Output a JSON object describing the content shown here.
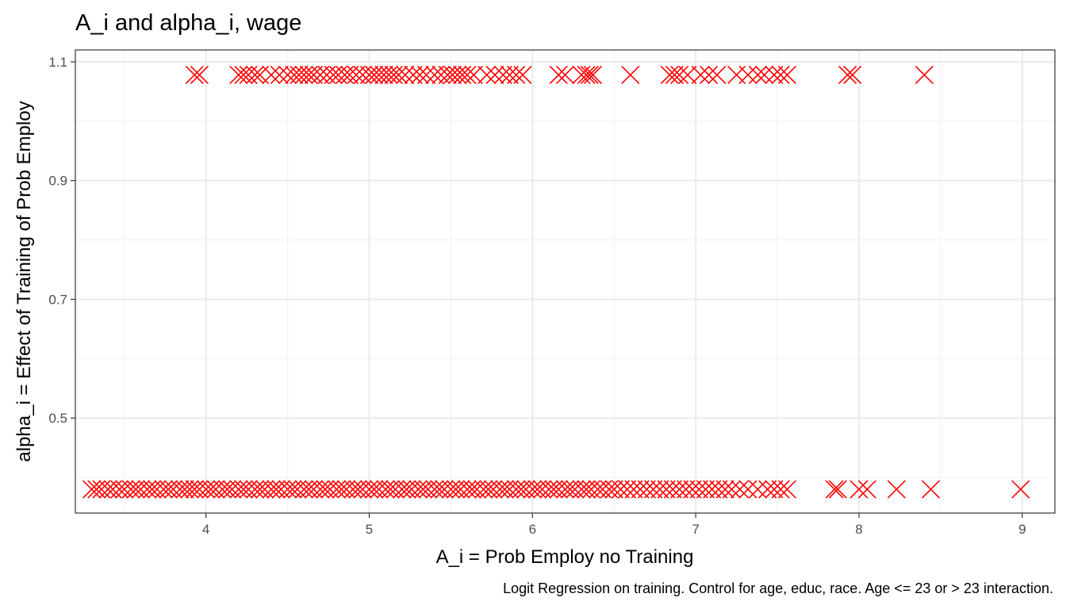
{
  "chart_data": {
    "type": "scatter",
    "title": "A_i and alpha_i, wage",
    "xlabel": "A_i = Prob Employ no Training",
    "ylabel": "alpha_i = Effect of Training of Prob Employ",
    "caption": "Logit Regression on training. Control for age, educ, race. Age <= 23 or > 23 interaction.",
    "xlim": [
      3.2,
      9.2
    ],
    "ylim": [
      0.34,
      1.12
    ],
    "x_ticks": [
      {
        "value": 4,
        "label": "4"
      },
      {
        "value": 5,
        "label": "5"
      },
      {
        "value": 6,
        "label": "6"
      },
      {
        "value": 7,
        "label": "7"
      },
      {
        "value": 8,
        "label": "8"
      },
      {
        "value": 9,
        "label": "9"
      }
    ],
    "y_ticks": [
      {
        "value": 0.5,
        "label": "0.5"
      },
      {
        "value": 0.7,
        "label": "0.7"
      },
      {
        "value": 0.9,
        "label": "0.9"
      },
      {
        "value": 1.1,
        "label": "1.1"
      }
    ],
    "grid": true,
    "marker": "x",
    "color": "#ff0000",
    "series": [
      {
        "y": 1.078,
        "x": [
          3.93,
          3.96,
          4.2,
          4.23,
          4.26,
          4.3,
          4.33,
          4.4,
          4.45,
          4.5,
          4.54,
          4.57,
          4.6,
          4.63,
          4.66,
          4.7,
          4.74,
          4.78,
          4.81,
          4.85,
          4.88,
          4.92,
          4.96,
          5.0,
          5.03,
          5.06,
          5.09,
          5.12,
          5.15,
          5.18,
          5.22,
          5.27,
          5.31,
          5.35,
          5.4,
          5.44,
          5.48,
          5.51,
          5.54,
          5.57,
          5.6,
          5.64,
          5.72,
          5.77,
          5.82,
          5.86,
          5.9,
          5.94,
          6.16,
          6.2,
          6.3,
          6.33,
          6.35,
          6.37,
          6.6,
          6.84,
          6.87,
          6.9,
          6.95,
          7.03,
          7.08,
          7.13,
          7.25,
          7.32,
          7.38,
          7.42,
          7.48,
          7.52,
          7.56,
          7.93,
          7.96,
          8.4
        ]
      },
      {
        "y": 0.38,
        "x": [
          3.3,
          3.33,
          3.36,
          3.4,
          3.43,
          3.47,
          3.5,
          3.54,
          3.57,
          3.6,
          3.64,
          3.67,
          3.7,
          3.74,
          3.77,
          3.8,
          3.84,
          3.87,
          3.9,
          3.93,
          3.96,
          4.0,
          4.03,
          4.06,
          4.1,
          4.13,
          4.16,
          4.2,
          4.23,
          4.26,
          4.3,
          4.33,
          4.36,
          4.4,
          4.43,
          4.46,
          4.5,
          4.53,
          4.56,
          4.6,
          4.63,
          4.66,
          4.7,
          4.73,
          4.76,
          4.8,
          4.83,
          4.86,
          4.9,
          4.93,
          4.96,
          5.0,
          5.03,
          5.06,
          5.1,
          5.13,
          5.16,
          5.2,
          5.23,
          5.26,
          5.3,
          5.33,
          5.36,
          5.4,
          5.43,
          5.46,
          5.5,
          5.53,
          5.56,
          5.6,
          5.63,
          5.66,
          5.7,
          5.73,
          5.76,
          5.8,
          5.83,
          5.86,
          5.9,
          5.93,
          5.96,
          6.0,
          6.03,
          6.06,
          6.1,
          6.13,
          6.16,
          6.2,
          6.23,
          6.26,
          6.3,
          6.33,
          6.36,
          6.4,
          6.43,
          6.47,
          6.5,
          6.54,
          6.58,
          6.62,
          6.66,
          6.7,
          6.74,
          6.78,
          6.82,
          6.86,
          6.9,
          6.94,
          6.98,
          7.02,
          7.06,
          7.1,
          7.14,
          7.18,
          7.22,
          7.27,
          7.32,
          7.38,
          7.44,
          7.48,
          7.52,
          7.56,
          7.85,
          7.87,
          8.0,
          8.05,
          8.23,
          8.44,
          8.99
        ]
      }
    ]
  }
}
